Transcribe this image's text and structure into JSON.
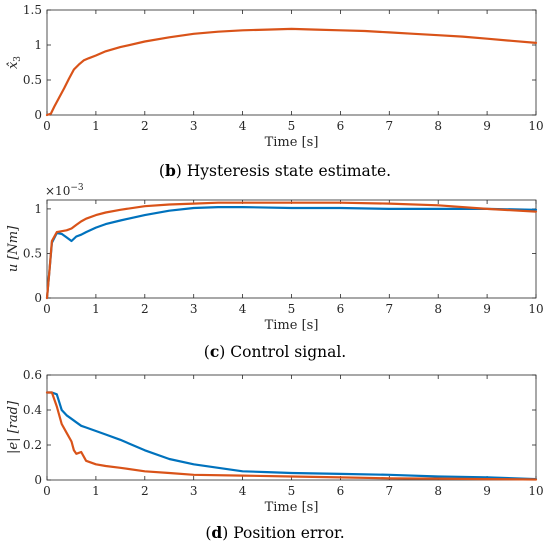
{
  "colors": {
    "series_blue": "#0072BD",
    "series_orange": "#D95319",
    "axis": "#262626"
  },
  "chart_data": [
    {
      "type": "line",
      "caption": {
        "letter": "b",
        "text": " Hysteresis state estimate."
      },
      "xlabel": "Time [s]",
      "ylabel": "x̂",
      "ylabel_sub": "3",
      "xlim": [
        0,
        10
      ],
      "ylim": [
        0,
        1.5
      ],
      "xticks": [
        0,
        1,
        2,
        3,
        4,
        5,
        6,
        7,
        8,
        9,
        10
      ],
      "yticks": [
        0,
        0.5,
        1,
        1.5
      ],
      "ytick_labels": [
        "0",
        "0.5",
        "1",
        "1.5"
      ],
      "grid": false,
      "series": [
        {
          "color": "#D95319",
          "x": [
            0,
            0.08,
            0.15,
            0.25,
            0.35,
            0.45,
            0.55,
            0.65,
            0.75,
            0.85,
            1.0,
            1.2,
            1.5,
            2.0,
            2.5,
            3.0,
            3.5,
            4.0,
            4.5,
            5.0,
            5.5,
            6.0,
            6.5,
            7.0,
            7.5,
            8.0,
            8.5,
            9.0,
            9.5,
            10.0
          ],
          "y": [
            0,
            0.02,
            0.12,
            0.25,
            0.38,
            0.52,
            0.65,
            0.72,
            0.78,
            0.81,
            0.85,
            0.91,
            0.97,
            1.05,
            1.11,
            1.16,
            1.19,
            1.21,
            1.22,
            1.23,
            1.22,
            1.21,
            1.2,
            1.18,
            1.16,
            1.14,
            1.12,
            1.09,
            1.06,
            1.03
          ]
        }
      ]
    },
    {
      "type": "line",
      "caption": {
        "letter": "c",
        "text": " Control signal."
      },
      "xlabel": "Time [s]",
      "ylabel": "u [Nm]",
      "exponent": {
        "base": "×10",
        "power": "−3"
      },
      "xlim": [
        0,
        10
      ],
      "ylim": [
        0,
        1.1
      ],
      "xticks": [
        0,
        1,
        2,
        3,
        4,
        5,
        6,
        7,
        8,
        9,
        10
      ],
      "yticks": [
        0,
        0.5,
        1
      ],
      "ytick_labels": [
        "0",
        "0.5",
        "1"
      ],
      "grid": false,
      "series": [
        {
          "color": "#0072BD",
          "x": [
            0,
            0.05,
            0.1,
            0.2,
            0.3,
            0.4,
            0.5,
            0.6,
            0.7,
            0.8,
            1.0,
            1.2,
            1.5,
            2.0,
            2.5,
            3.0,
            3.5,
            4.0,
            5.0,
            6.0,
            7.0,
            8.0,
            9.0,
            10.0
          ],
          "y": [
            0,
            0.3,
            0.62,
            0.73,
            0.72,
            0.68,
            0.64,
            0.69,
            0.71,
            0.74,
            0.79,
            0.83,
            0.87,
            0.93,
            0.98,
            1.01,
            1.02,
            1.02,
            1.01,
            1.01,
            1.0,
            1.0,
            1.0,
            0.99
          ]
        },
        {
          "color": "#D95319",
          "x": [
            0,
            0.05,
            0.1,
            0.2,
            0.3,
            0.4,
            0.5,
            0.6,
            0.7,
            0.8,
            1.0,
            1.2,
            1.5,
            2.0,
            2.5,
            3.0,
            3.5,
            4.0,
            5.0,
            6.0,
            7.0,
            8.0,
            9.0,
            10.0
          ],
          "y": [
            0,
            0.3,
            0.64,
            0.74,
            0.75,
            0.76,
            0.78,
            0.82,
            0.86,
            0.89,
            0.93,
            0.96,
            0.99,
            1.03,
            1.05,
            1.06,
            1.07,
            1.07,
            1.07,
            1.07,
            1.06,
            1.04,
            1.0,
            0.97
          ]
        }
      ]
    },
    {
      "type": "line",
      "caption": {
        "letter": "d",
        "text": " Position error."
      },
      "xlabel": "Time [s]",
      "ylabel": "|e| [rad]",
      "xlim": [
        0,
        10
      ],
      "ylim": [
        0,
        0.6
      ],
      "xticks": [
        0,
        1,
        2,
        3,
        4,
        5,
        6,
        7,
        8,
        9,
        10
      ],
      "yticks": [
        0,
        0.2,
        0.4,
        0.6
      ],
      "ytick_labels": [
        "0",
        "0.2",
        "0.4",
        "0.6"
      ],
      "grid": false,
      "series": [
        {
          "color": "#0072BD",
          "x": [
            0,
            0.1,
            0.2,
            0.3,
            0.4,
            0.5,
            0.6,
            0.7,
            0.8,
            1.0,
            1.2,
            1.5,
            2.0,
            2.5,
            3.0,
            3.5,
            4.0,
            4.5,
            5.0,
            6.0,
            7.0,
            8.0,
            9.0,
            10.0
          ],
          "y": [
            0.5,
            0.5,
            0.49,
            0.4,
            0.37,
            0.35,
            0.33,
            0.31,
            0.3,
            0.28,
            0.26,
            0.23,
            0.17,
            0.12,
            0.09,
            0.07,
            0.05,
            0.045,
            0.04,
            0.035,
            0.03,
            0.02,
            0.015,
            0.005
          ]
        },
        {
          "color": "#D95319",
          "x": [
            0,
            0.1,
            0.2,
            0.3,
            0.4,
            0.5,
            0.55,
            0.6,
            0.7,
            0.8,
            1.0,
            1.2,
            1.5,
            2.0,
            2.5,
            3.0,
            4.0,
            5.0,
            6.0,
            7.0,
            8.0,
            9.0,
            10.0
          ],
          "y": [
            0.5,
            0.5,
            0.42,
            0.32,
            0.27,
            0.22,
            0.17,
            0.15,
            0.16,
            0.11,
            0.09,
            0.08,
            0.07,
            0.05,
            0.04,
            0.03,
            0.025,
            0.02,
            0.015,
            0.01,
            0.008,
            0.005,
            0.003
          ]
        }
      ]
    }
  ]
}
